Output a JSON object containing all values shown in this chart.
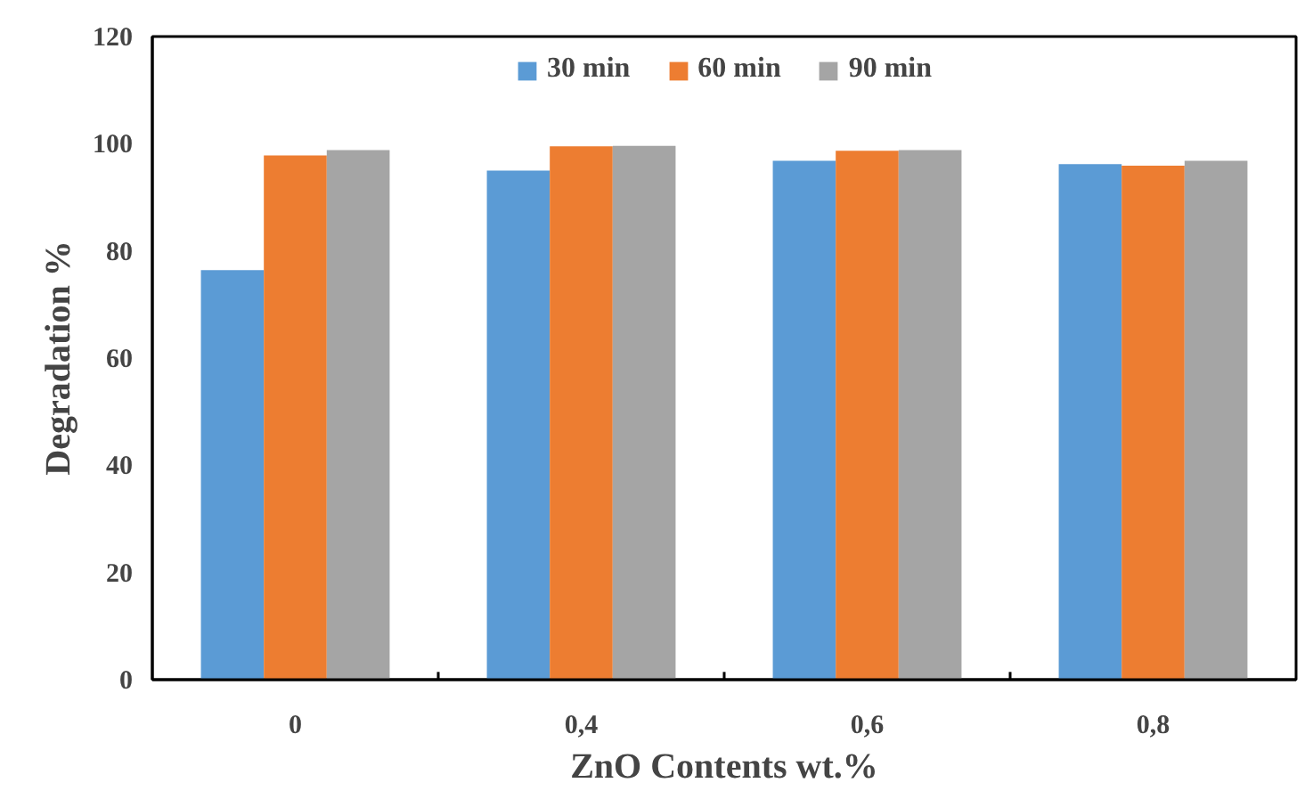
{
  "chart_data": {
    "type": "bar",
    "xlabel": "ZnO Contents wt.%",
    "ylabel": "Degradation %",
    "categories": [
      "0",
      "0,4",
      "0,6",
      "0,8"
    ],
    "series": [
      {
        "name": "30 min",
        "color": "#5b9bd5",
        "values": [
          76.4,
          95.0,
          96.8,
          96.2
        ]
      },
      {
        "name": "60 min",
        "color": "#ed7d31",
        "values": [
          97.8,
          99.5,
          98.7,
          95.9
        ]
      },
      {
        "name": "90 min",
        "color": "#a5a5a5",
        "values": [
          98.8,
          99.6,
          98.8,
          96.8
        ]
      }
    ],
    "ylim": [
      0,
      120
    ],
    "yticks": [
      0,
      20,
      40,
      60,
      80,
      100,
      120
    ],
    "grid": false,
    "legend": "top"
  }
}
